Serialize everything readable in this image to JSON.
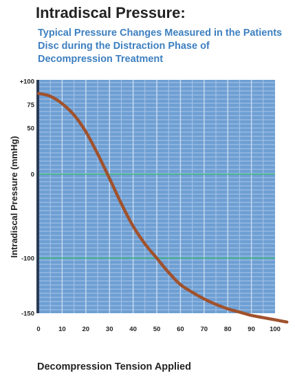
{
  "chart_data": {
    "type": "line",
    "title": "Intradiscal Pressure:",
    "subtitle": "Typical Pressure Changes Measured in the Patients Disc during the Distraction Phase of Decompression Treatment",
    "xlabel": "Decompression Tension Applied",
    "ylabel": "Intradiscal Pressure (mmHg)",
    "xlim": [
      0,
      100
    ],
    "ylim": [
      -150,
      100
    ],
    "x_ticks": [
      "0",
      "10",
      "20",
      "30",
      "40",
      "50",
      "60",
      "70",
      "80",
      "90",
      "100"
    ],
    "y_ticks": [
      {
        "value": 100,
        "label": "+100"
      },
      {
        "value": 75,
        "label": "75"
      },
      {
        "value": 50,
        "label": "50"
      },
      {
        "value": 0,
        "label": "0"
      },
      {
        "value": -100,
        "label": "-100"
      },
      {
        "value": -150,
        "label": "-150"
      }
    ],
    "reference_lines": [
      0,
      -100
    ],
    "grid": true,
    "series": [
      {
        "color": "#a0522d",
        "x": [
          0,
          5,
          10,
          15,
          20,
          25,
          30,
          35,
          40,
          45,
          50,
          55,
          60,
          65,
          70,
          75,
          80,
          85,
          90,
          95,
          100,
          105
        ],
        "y": [
          87,
          84,
          76,
          64,
          46,
          22,
          -5,
          -35,
          -62,
          -83,
          -100,
          -113,
          -124,
          -131,
          -137,
          -142,
          -146,
          -149,
          -152,
          -154,
          -156,
          -158
        ]
      }
    ]
  }
}
